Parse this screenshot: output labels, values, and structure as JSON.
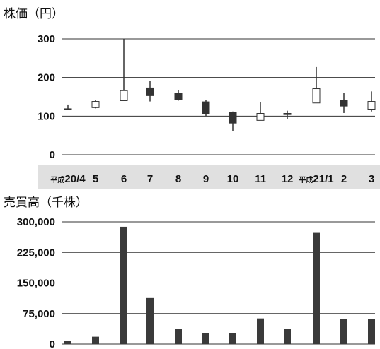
{
  "chart_data": [
    {
      "type": "candlestick",
      "title": "株価（円）",
      "ylabel": "",
      "xlabel": "",
      "ylim": [
        0,
        300
      ],
      "yticks": [
        "0",
        "100",
        "200",
        "300"
      ],
      "grid": true,
      "categories": [
        {
          "prefix": "平成",
          "label": "20/4"
        },
        {
          "prefix": "",
          "label": "5"
        },
        {
          "prefix": "",
          "label": "6"
        },
        {
          "prefix": "",
          "label": "7"
        },
        {
          "prefix": "",
          "label": "8"
        },
        {
          "prefix": "",
          "label": "9"
        },
        {
          "prefix": "",
          "label": "10"
        },
        {
          "prefix": "",
          "label": "11"
        },
        {
          "prefix": "",
          "label": "12"
        },
        {
          "prefix": "平成",
          "label": "21/1"
        },
        {
          "prefix": "",
          "label": "2"
        },
        {
          "prefix": "",
          "label": "3"
        }
      ],
      "ohlc": [
        {
          "open": 119,
          "high": 130,
          "low": 117,
          "close": 119
        },
        {
          "open": 122,
          "high": 142,
          "low": 120,
          "close": 138
        },
        {
          "open": 140,
          "high": 300,
          "low": 140,
          "close": 166
        },
        {
          "open": 173,
          "high": 192,
          "low": 138,
          "close": 153
        },
        {
          "open": 160,
          "high": 167,
          "low": 140,
          "close": 142
        },
        {
          "open": 137,
          "high": 142,
          "low": 100,
          "close": 107
        },
        {
          "open": 110,
          "high": 112,
          "low": 62,
          "close": 82
        },
        {
          "open": 89,
          "high": 137,
          "low": 89,
          "close": 107
        },
        {
          "open": 107,
          "high": 114,
          "low": 92,
          "close": 104
        },
        {
          "open": 134,
          "high": 227,
          "low": 134,
          "close": 171
        },
        {
          "open": 140,
          "high": 160,
          "low": 108,
          "close": 126
        },
        {
          "open": 118,
          "high": 164,
          "low": 112,
          "close": 138
        }
      ],
      "colors": {
        "down": "#333333",
        "up": "#ffffff",
        "band": "#e0e0e0"
      }
    },
    {
      "type": "bar",
      "title": "売買高（千株）",
      "ylabel": "",
      "xlabel": "",
      "ylim": [
        0,
        300000
      ],
      "yticks": [
        "0",
        "75,000",
        "150,000",
        "225,000",
        "300,000"
      ],
      "grid": true,
      "values": [
        7000,
        18000,
        288000,
        113000,
        38000,
        27000,
        27000,
        63000,
        38000,
        273000,
        61000,
        61000
      ],
      "colors": {
        "bar": "#3a3a3a"
      }
    }
  ]
}
